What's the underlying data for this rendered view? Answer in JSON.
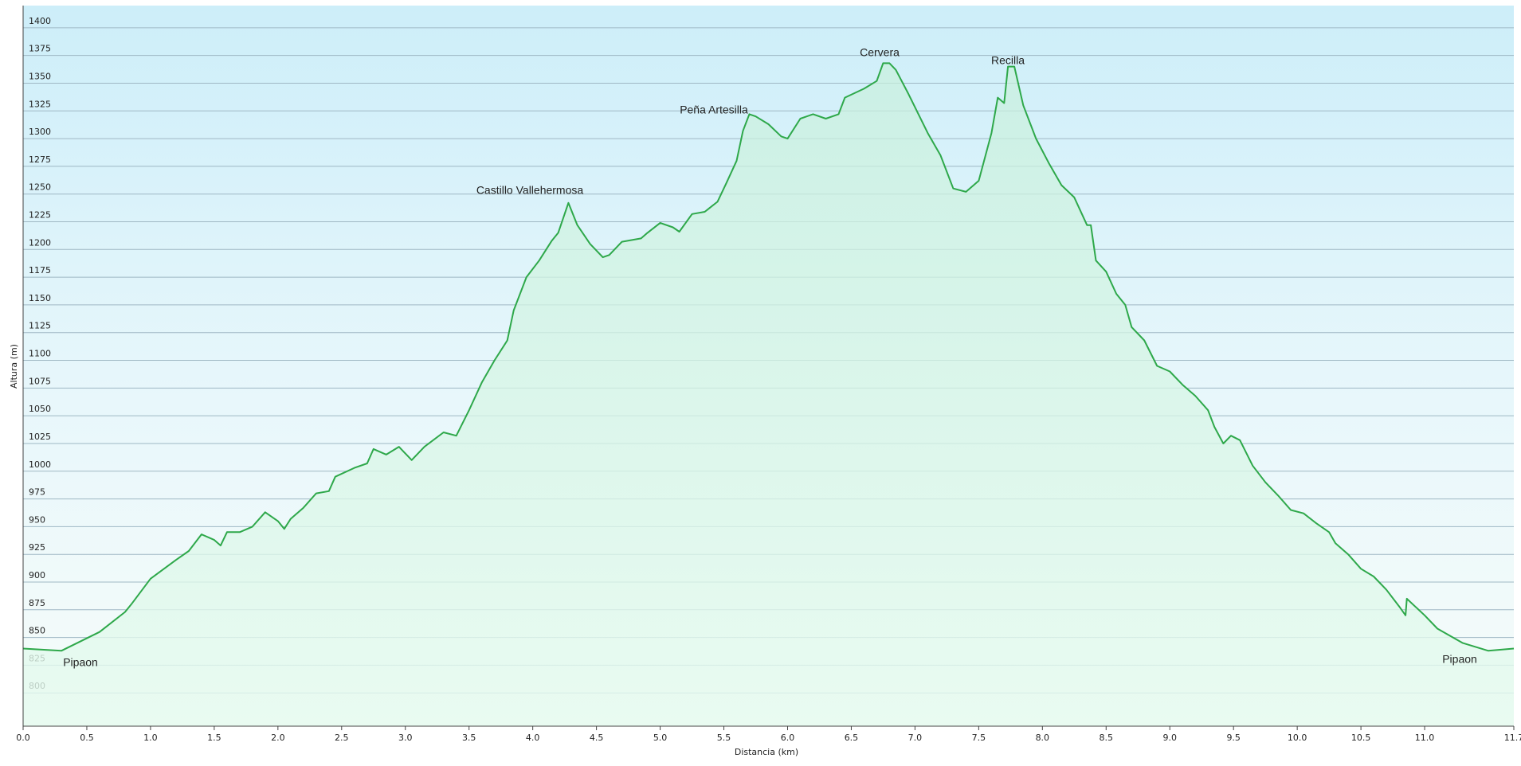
{
  "chart_data": {
    "type": "area",
    "x_label": "Distancia  (km)",
    "y_label": "Altura (m)",
    "annotations": [
      "Castillo Vallehermosa",
      "Peña Artesilla",
      "Cervera",
      "Recilla",
      "Pipaon",
      "Pipaon"
    ],
    "color": "#2ea84a",
    "grid": true,
    "xlim": [
      0,
      11.7
    ],
    "ylim": [
      770,
      1420
    ],
    "xticks": [
      {
        "value": 0,
        "label": "0.0"
      },
      0.5,
      {
        "value": 1,
        "label": "1.0"
      },
      1.5,
      {
        "value": 2,
        "label": "2.0"
      },
      2.5,
      {
        "value": 3,
        "label": "3.0"
      },
      3.5,
      {
        "value": 4,
        "label": "4.0"
      },
      4.5,
      {
        "value": 5,
        "label": "5.0"
      },
      5.5,
      {
        "value": 6,
        "label": "6.0"
      },
      6.5,
      {
        "value": 7,
        "label": "7.0"
      },
      7.5,
      {
        "value": 8,
        "label": "8.0"
      },
      8.5,
      {
        "value": 9,
        "label": "9.0"
      },
      9.5,
      {
        "value": 10,
        "label": "10.0"
      },
      10.5,
      {
        "value": 11,
        "label": "11.0"
      },
      11.7
    ],
    "yticks": [
      800,
      825,
      850,
      875,
      900,
      925,
      950,
      975,
      1000,
      1025,
      1050,
      1075,
      1100,
      1125,
      1150,
      1175,
      1200,
      1225,
      1250,
      1275,
      1300,
      1325,
      1350,
      1375,
      1400
    ],
    "x": [
      0,
      0.3,
      0.6,
      0.8,
      0.85,
      1.0,
      1.2,
      1.3,
      1.4,
      1.5,
      1.55,
      1.6,
      1.7,
      1.8,
      1.9,
      2.0,
      2.05,
      2.1,
      2.2,
      2.3,
      2.4,
      2.45,
      2.6,
      2.7,
      2.75,
      2.85,
      2.95,
      3.05,
      3.15,
      3.3,
      3.4,
      3.5,
      3.6,
      3.7,
      3.8,
      3.85,
      3.95,
      4.05,
      4.15,
      4.2,
      4.28,
      4.35,
      4.45,
      4.55,
      4.6,
      4.7,
      4.85,
      4.9,
      5.0,
      5.1,
      5.15,
      5.25,
      5.35,
      5.45,
      5.52,
      5.6,
      5.65,
      5.7,
      5.75,
      5.85,
      5.95,
      6.0,
      6.1,
      6.2,
      6.3,
      6.4,
      6.45,
      6.6,
      6.7,
      6.75,
      6.8,
      6.85,
      6.95,
      7.1,
      7.2,
      7.3,
      7.4,
      7.5,
      7.6,
      7.65,
      7.7,
      7.73,
      7.78,
      7.85,
      7.95,
      8.05,
      8.15,
      8.25,
      8.35,
      8.38,
      8.42,
      8.5,
      8.58,
      8.65,
      8.7,
      8.8,
      8.9,
      9.0,
      9.1,
      9.2,
      9.3,
      9.35,
      9.42,
      9.48,
      9.55,
      9.65,
      9.75,
      9.85,
      9.95,
      10.05,
      10.15,
      10.25,
      10.3,
      10.4,
      10.5,
      10.6,
      10.7,
      10.8,
      10.85,
      10.86,
      11.0,
      11.1,
      11.3,
      11.5,
      11.7
    ],
    "values": [
      840,
      838,
      855,
      873,
      880,
      903,
      920,
      928,
      943,
      938,
      933,
      945,
      945,
      950,
      963,
      955,
      948,
      957,
      967,
      980,
      982,
      995,
      1003,
      1007,
      1020,
      1015,
      1022,
      1010,
      1022,
      1035,
      1032,
      1055,
      1080,
      1100,
      1118,
      1145,
      1175,
      1190,
      1208,
      1215,
      1242,
      1222,
      1205,
      1193,
      1195,
      1207,
      1210,
      1215,
      1224,
      1220,
      1216,
      1232,
      1234,
      1243,
      1260,
      1280,
      1307,
      1322,
      1320,
      1313,
      1302,
      1300,
      1318,
      1322,
      1318,
      1322,
      1337,
      1345,
      1352,
      1368,
      1368,
      1362,
      1340,
      1305,
      1285,
      1255,
      1252,
      1262,
      1305,
      1337,
      1332,
      1365,
      1365,
      1330,
      1300,
      1278,
      1258,
      1247,
      1222,
      1222,
      1190,
      1180,
      1160,
      1150,
      1130,
      1118,
      1095,
      1090,
      1078,
      1068,
      1055,
      1040,
      1025,
      1032,
      1028,
      1005,
      990,
      978,
      965,
      962,
      953,
      945,
      935,
      925,
      912,
      905,
      893,
      878,
      870,
      885,
      870,
      858,
      845,
      838,
      840
    ]
  }
}
